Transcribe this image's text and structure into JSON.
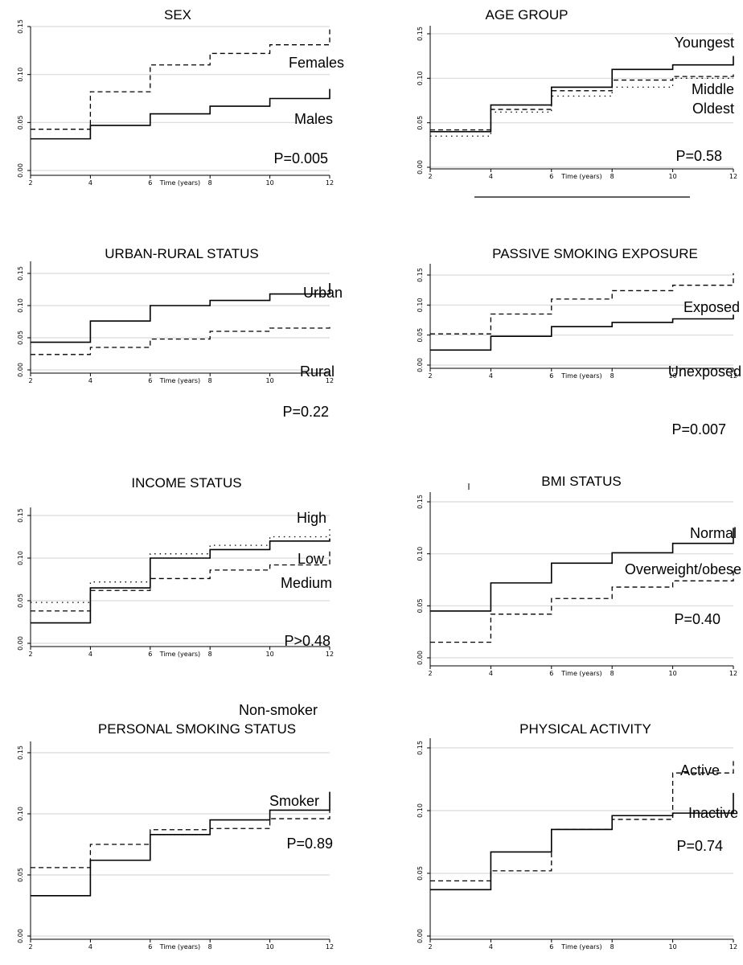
{
  "chart_data": [
    {
      "type": "line",
      "step": true,
      "title": "SEX",
      "xlabel": "Time (years)",
      "ylabel": "",
      "xlim": [
        2,
        12
      ],
      "ylim": [
        0,
        0.15
      ],
      "x_ticks": [
        "2",
        "4",
        "6",
        "8",
        "10",
        "12"
      ],
      "y_ticks": [
        "0.00",
        "0.05",
        "0.10",
        "0.15"
      ],
      "series": [
        {
          "name": "Females",
          "style": "dashed",
          "x": [
            2,
            4,
            6,
            8,
            10,
            12
          ],
          "y": [
            0.043,
            0.082,
            0.11,
            0.122,
            0.131,
            0.15
          ]
        },
        {
          "name": "Males",
          "style": "solid",
          "x": [
            2,
            4,
            6,
            8,
            10,
            12
          ],
          "y": [
            0.033,
            0.047,
            0.059,
            0.067,
            0.075,
            0.085
          ]
        }
      ],
      "annotations": [
        "Females",
        "Males",
        "P=0.005"
      ]
    },
    {
      "type": "line",
      "step": true,
      "title": "AGE GROUP",
      "xlabel": "Time (years)",
      "ylabel": "",
      "xlim": [
        2,
        12
      ],
      "ylim": [
        0,
        0.15
      ],
      "x_ticks": [
        "2",
        "4",
        "6",
        "8",
        "10",
        "12"
      ],
      "y_ticks": [
        "0.00",
        "0.05",
        "0.10",
        "0.15"
      ],
      "series": [
        {
          "name": "Youngest",
          "style": "solid",
          "x": [
            2,
            4,
            6,
            8,
            10,
            12
          ],
          "y": [
            0.04,
            0.07,
            0.09,
            0.11,
            0.115,
            0.125
          ]
        },
        {
          "name": "Middle",
          "style": "dashed",
          "x": [
            2,
            4,
            6,
            8,
            10,
            12
          ],
          "y": [
            0.042,
            0.065,
            0.086,
            0.098,
            0.102,
            0.108
          ]
        },
        {
          "name": "Oldest",
          "style": "dotted",
          "x": [
            2,
            4,
            6,
            8,
            10,
            12
          ],
          "y": [
            0.035,
            0.062,
            0.08,
            0.09,
            0.1,
            0.1
          ]
        }
      ],
      "annotations": [
        "Youngest",
        "Middle",
        "Oldest",
        "P=0.58"
      ]
    },
    {
      "type": "line",
      "step": true,
      "title": "URBAN-RURAL STATUS",
      "xlabel": "Time (years)",
      "ylabel": "",
      "xlim": [
        2,
        12
      ],
      "ylim": [
        0,
        0.15
      ],
      "x_ticks": [
        "2",
        "4",
        "6",
        "8",
        "10",
        "12"
      ],
      "y_ticks": [
        "0.00",
        "0.05",
        "0.10",
        "0.15"
      ],
      "series": [
        {
          "name": "Urban",
          "style": "solid",
          "x": [
            2,
            4,
            6,
            8,
            10,
            12
          ],
          "y": [
            0.043,
            0.076,
            0.1,
            0.108,
            0.118,
            0.135
          ]
        },
        {
          "name": "Rural",
          "style": "dashed",
          "x": [
            2,
            4,
            6,
            8,
            10,
            12
          ],
          "y": [
            0.024,
            0.035,
            0.048,
            0.06,
            0.065,
            0.07
          ]
        }
      ],
      "annotations": [
        "Urban",
        "Rural",
        "P=0.22"
      ]
    },
    {
      "type": "line",
      "step": true,
      "title": "PASSIVE SMOKING EXPOSURE",
      "xlabel": "Time (years)",
      "ylabel": "",
      "xlim": [
        2,
        12
      ],
      "ylim": [
        0,
        0.15
      ],
      "x_ticks": [
        "2",
        "4",
        "6",
        "8",
        "10",
        "12"
      ],
      "y_ticks": [
        "0.00",
        "0.05",
        "0.10",
        "0.15"
      ],
      "series": [
        {
          "name": "Exposed",
          "style": "dashed",
          "x": [
            2,
            4,
            6,
            8,
            10,
            12
          ],
          "y": [
            0.052,
            0.085,
            0.11,
            0.124,
            0.133,
            0.153
          ]
        },
        {
          "name": "Unexposed",
          "style": "solid",
          "x": [
            2,
            4,
            6,
            8,
            10,
            12
          ],
          "y": [
            0.025,
            0.048,
            0.064,
            0.071,
            0.077,
            0.084
          ]
        }
      ],
      "annotations": [
        "Exposed",
        "Unexposed",
        "P=0.007"
      ]
    },
    {
      "type": "line",
      "step": true,
      "title": "INCOME STATUS",
      "xlabel": "Time (years)",
      "ylabel": "",
      "xlim": [
        2,
        12
      ],
      "ylim": [
        0,
        0.15
      ],
      "x_ticks": [
        "2",
        "4",
        "6",
        "8",
        "10",
        "12"
      ],
      "y_ticks": [
        "0.00",
        "0.05",
        "0.10",
        "0.15"
      ],
      "series": [
        {
          "name": "High",
          "style": "dotted",
          "x": [
            2,
            4,
            6,
            8,
            10,
            12
          ],
          "y": [
            0.048,
            0.072,
            0.105,
            0.115,
            0.125,
            0.137
          ]
        },
        {
          "name": "Low",
          "style": "solid",
          "x": [
            2,
            4,
            6,
            8,
            10,
            12
          ],
          "y": [
            0.024,
            0.065,
            0.1,
            0.11,
            0.12,
            0.123
          ]
        },
        {
          "name": "Medium",
          "style": "dashed",
          "x": [
            2,
            4,
            6,
            8,
            10,
            12
          ],
          "y": [
            0.038,
            0.062,
            0.076,
            0.086,
            0.092,
            0.108
          ]
        }
      ],
      "annotations": [
        "High",
        "Low",
        "Medium",
        "P>0.48"
      ]
    },
    {
      "type": "line",
      "step": true,
      "title": "BMI STATUS",
      "xlabel": "Time (years)",
      "ylabel": "",
      "xlim": [
        2,
        12
      ],
      "ylim": [
        0,
        0.15
      ],
      "x_ticks": [
        "2",
        "4",
        "6",
        "8",
        "10",
        "12"
      ],
      "y_ticks": [
        "0.00",
        "0.05",
        "0.10",
        "0.15"
      ],
      "series": [
        {
          "name": "Normal",
          "style": "solid",
          "x": [
            2,
            4,
            6,
            8,
            10,
            12
          ],
          "y": [
            0.045,
            0.072,
            0.091,
            0.101,
            0.11,
            0.125
          ]
        },
        {
          "name": "Overweight/obese",
          "style": "dashed",
          "x": [
            2,
            4,
            6,
            8,
            10,
            12
          ],
          "y": [
            0.015,
            0.042,
            0.057,
            0.068,
            0.074,
            0.085
          ]
        }
      ],
      "annotations": [
        "Normal",
        "Overweight/obese",
        "P=0.40"
      ]
    },
    {
      "type": "line",
      "step": true,
      "title": "PERSONAL SMOKING STATUS",
      "xlabel": "Time (years)",
      "ylabel": "",
      "xlim": [
        2,
        12
      ],
      "ylim": [
        0,
        0.15
      ],
      "x_ticks": [
        "2",
        "4",
        "6",
        "8",
        "10",
        "12"
      ],
      "y_ticks": [
        "0.00",
        "0.05",
        "0.10",
        "0.15"
      ],
      "series": [
        {
          "name": "Non-smoker",
          "style": "solid",
          "x": [
            2,
            4,
            6,
            8,
            10,
            12
          ],
          "y": [
            0.033,
            0.062,
            0.083,
            0.095,
            0.103,
            0.118
          ]
        },
        {
          "name": "Smoker",
          "style": "dashed",
          "x": [
            2,
            4,
            6,
            8,
            10,
            12
          ],
          "y": [
            0.056,
            0.075,
            0.087,
            0.088,
            0.096,
            0.103
          ]
        }
      ],
      "annotations": [
        "Non-smoker",
        "Smoker",
        "P=0.89"
      ]
    },
    {
      "type": "line",
      "step": true,
      "title": "PHYSICAL ACTIVITY",
      "xlabel": "Time (years)",
      "ylabel": "",
      "xlim": [
        2,
        12
      ],
      "ylim": [
        0,
        0.15
      ],
      "x_ticks": [
        "2",
        "4",
        "6",
        "8",
        "10",
        "12"
      ],
      "y_ticks": [
        "0.00",
        "0.05",
        "0.10",
        "0.15"
      ],
      "series": [
        {
          "name": "Active",
          "style": "dashed",
          "x": [
            2,
            4,
            6,
            8,
            10,
            12
          ],
          "y": [
            0.044,
            0.052,
            0.085,
            0.093,
            0.13,
            0.14
          ]
        },
        {
          "name": "Inactive",
          "style": "solid",
          "x": [
            2,
            4,
            6,
            8,
            10,
            12
          ],
          "y": [
            0.037,
            0.067,
            0.085,
            0.096,
            0.098,
            0.114
          ]
        }
      ],
      "annotations": [
        "Active",
        "Inactive",
        "P=0.74"
      ]
    }
  ]
}
